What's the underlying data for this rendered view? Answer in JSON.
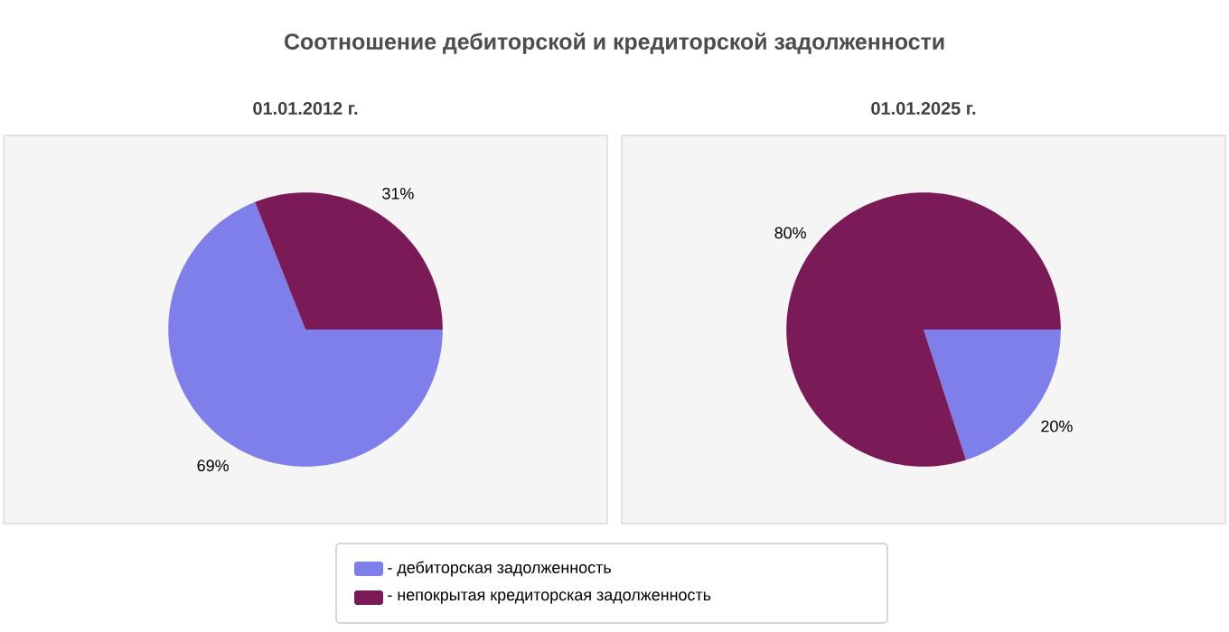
{
  "chart_data": [
    {
      "type": "pie",
      "title": "Соотношение дебиторской и кредиторской задолженности",
      "subtitle": "01.01.2012 г.",
      "categories": [
        "- дебиторская задолженность",
        "- непокрытая кредиторская задолженность"
      ],
      "values": [
        69,
        31
      ],
      "value_labels": [
        "69%",
        "31%"
      ],
      "colors": [
        "#7f7fec",
        "#7a1a56"
      ],
      "legend": "bottom"
    },
    {
      "type": "pie",
      "subtitle": "01.01.2025 г.",
      "categories": [
        null,
        null
      ],
      "values": [
        20,
        80
      ],
      "value_labels": [
        "20%",
        "80%"
      ],
      "colors": [
        "#7f7fec",
        "#7a1a56"
      ]
    }
  ]
}
